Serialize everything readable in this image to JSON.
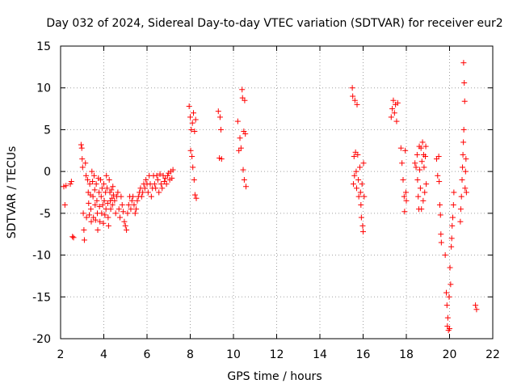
{
  "chart_data": {
    "type": "scatter",
    "title": "Day 032 of 2024, Sidereal Day-to-day VTEC variation (SDTVAR) for receiver eur2",
    "xlabel": "GPS time / hours",
    "ylabel": "SDTVAR / TECUs",
    "xlim": [
      2,
      22
    ],
    "ylim": [
      -20,
      15
    ],
    "xticks": [
      "2",
      "4",
      "6",
      "8",
      "10",
      "12",
      "14",
      "16",
      "18",
      "20",
      "22"
    ],
    "yticks": [
      "15",
      "10",
      "5",
      "0",
      "-5",
      "-10",
      "-15",
      "-20"
    ],
    "grid": true,
    "marker": "+",
    "color": "#ff0000",
    "series": [
      {
        "name": "SDTVAR",
        "points": [
          [
            2.15,
            -1.8
          ],
          [
            2.2,
            -4.0
          ],
          [
            2.25,
            -1.7
          ],
          [
            2.45,
            -1.5
          ],
          [
            2.5,
            -1.2
          ],
          [
            2.55,
            -7.8
          ],
          [
            2.6,
            -7.9
          ],
          [
            2.95,
            3.2
          ],
          [
            2.98,
            2.8
          ],
          [
            3.0,
            1.5
          ],
          [
            3.02,
            0.5
          ],
          [
            3.05,
            -5.0
          ],
          [
            3.08,
            -7.0
          ],
          [
            3.1,
            -8.2
          ],
          [
            3.15,
            1.0
          ],
          [
            3.18,
            -0.5
          ],
          [
            3.2,
            -5.5
          ],
          [
            3.25,
            -1.0
          ],
          [
            3.28,
            -2.5
          ],
          [
            3.3,
            -3.8
          ],
          [
            3.33,
            -5.2
          ],
          [
            3.35,
            -1.5
          ],
          [
            3.38,
            -2.8
          ],
          [
            3.4,
            -4.5
          ],
          [
            3.42,
            -6.0
          ],
          [
            3.45,
            0.0
          ],
          [
            3.48,
            -1.2
          ],
          [
            3.5,
            -3.0
          ],
          [
            3.52,
            -5.5
          ],
          [
            3.55,
            -0.5
          ],
          [
            3.58,
            -2.2
          ],
          [
            3.6,
            -4.0
          ],
          [
            3.62,
            -5.8
          ],
          [
            3.65,
            -1.5
          ],
          [
            3.68,
            -3.5
          ],
          [
            3.7,
            -5.0
          ],
          [
            3.72,
            -7.0
          ],
          [
            3.75,
            -0.8
          ],
          [
            3.78,
            -2.5
          ],
          [
            3.8,
            -4.2
          ],
          [
            3.82,
            -6.0
          ],
          [
            3.85,
            -1.0
          ],
          [
            3.88,
            -3.0
          ],
          [
            3.9,
            -5.0
          ],
          [
            3.92,
            -2.0
          ],
          [
            3.95,
            -4.0
          ],
          [
            3.98,
            -6.2
          ],
          [
            4.0,
            -1.5
          ],
          [
            4.02,
            -3.5
          ],
          [
            4.05,
            -5.2
          ],
          [
            4.08,
            -2.5
          ],
          [
            4.1,
            -4.5
          ],
          [
            4.12,
            -0.5
          ],
          [
            4.15,
            -2.0
          ],
          [
            4.18,
            -3.8
          ],
          [
            4.2,
            -5.5
          ],
          [
            4.22,
            -6.5
          ],
          [
            4.25,
            -1.0
          ],
          [
            4.28,
            -2.5
          ],
          [
            4.3,
            -3.5
          ],
          [
            4.32,
            -4.5
          ],
          [
            4.35,
            -2.2
          ],
          [
            4.38,
            -3.2
          ],
          [
            4.4,
            -4.0
          ],
          [
            4.42,
            -1.8
          ],
          [
            4.45,
            -2.8
          ],
          [
            4.5,
            -3.5
          ],
          [
            4.55,
            -5.0
          ],
          [
            4.6,
            -3.0
          ],
          [
            4.65,
            -2.5
          ],
          [
            4.7,
            -4.5
          ],
          [
            4.75,
            -5.5
          ],
          [
            4.8,
            -3.0
          ],
          [
            4.85,
            -4.0
          ],
          [
            4.9,
            -4.8
          ],
          [
            4.95,
            -6.0
          ],
          [
            5.0,
            -6.5
          ],
          [
            5.05,
            -7.0
          ],
          [
            5.1,
            -5.0
          ],
          [
            5.15,
            -4.0
          ],
          [
            5.2,
            -3.0
          ],
          [
            5.25,
            -4.5
          ],
          [
            5.3,
            -3.5
          ],
          [
            5.35,
            -3.0
          ],
          [
            5.4,
            -4.0
          ],
          [
            5.45,
            -5.0
          ],
          [
            5.5,
            -4.5
          ],
          [
            5.55,
            -3.5
          ],
          [
            5.6,
            -3.0
          ],
          [
            5.65,
            -2.5
          ],
          [
            5.7,
            -2.0
          ],
          [
            5.75,
            -3.0
          ],
          [
            5.8,
            -2.5
          ],
          [
            5.85,
            -1.5
          ],
          [
            5.9,
            -2.0
          ],
          [
            5.95,
            -1.0
          ],
          [
            6.0,
            -1.5
          ],
          [
            6.05,
            -2.5
          ],
          [
            6.1,
            -0.5
          ],
          [
            6.15,
            -1.5
          ],
          [
            6.2,
            -3.0
          ],
          [
            6.25,
            -2.0
          ],
          [
            6.3,
            -0.5
          ],
          [
            6.35,
            -1.5
          ],
          [
            6.4,
            -2.0
          ],
          [
            6.45,
            -0.5
          ],
          [
            6.5,
            -1.0
          ],
          [
            6.55,
            -2.5
          ],
          [
            6.6,
            -0.3
          ],
          [
            6.65,
            -1.5
          ],
          [
            6.7,
            -2.0
          ],
          [
            6.75,
            -0.5
          ],
          [
            6.8,
            -1.2
          ],
          [
            6.85,
            -0.8
          ],
          [
            6.9,
            -1.5
          ],
          [
            6.95,
            -0.5
          ],
          [
            7.0,
            -0.2
          ],
          [
            7.05,
            -1.0
          ],
          [
            7.1,
            0.0
          ],
          [
            7.15,
            -0.8
          ],
          [
            7.2,
            0.2
          ],
          [
            7.95,
            7.8
          ],
          [
            8.0,
            6.5
          ],
          [
            8.02,
            2.5
          ],
          [
            8.05,
            5.0
          ],
          [
            8.08,
            1.8
          ],
          [
            8.1,
            5.8
          ],
          [
            8.12,
            0.5
          ],
          [
            8.15,
            7.0
          ],
          [
            8.18,
            -1.0
          ],
          [
            8.2,
            4.8
          ],
          [
            8.22,
            -2.8
          ],
          [
            8.25,
            6.2
          ],
          [
            8.28,
            -3.2
          ],
          [
            9.3,
            7.2
          ],
          [
            9.35,
            1.6
          ],
          [
            9.38,
            6.5
          ],
          [
            9.42,
            5.0
          ],
          [
            9.45,
            1.5
          ],
          [
            10.2,
            6.0
          ],
          [
            10.25,
            2.5
          ],
          [
            10.3,
            4.0
          ],
          [
            10.35,
            2.8
          ],
          [
            10.4,
            9.8
          ],
          [
            10.42,
            8.8
          ],
          [
            10.45,
            0.2
          ],
          [
            10.48,
            4.8
          ],
          [
            10.5,
            -1.0
          ],
          [
            10.52,
            8.5
          ],
          [
            10.55,
            4.5
          ],
          [
            10.58,
            -1.8
          ],
          [
            15.5,
            10.0
          ],
          [
            15.52,
            9.0
          ],
          [
            15.55,
            -1.5
          ],
          [
            15.58,
            1.8
          ],
          [
            15.6,
            -0.5
          ],
          [
            15.62,
            8.5
          ],
          [
            15.65,
            2.3
          ],
          [
            15.68,
            0.0
          ],
          [
            15.7,
            -2.0
          ],
          [
            15.72,
            8.0
          ],
          [
            15.75,
            2.0
          ],
          [
            15.78,
            -1.0
          ],
          [
            15.8,
            -3.0
          ],
          [
            15.85,
            0.5
          ],
          [
            15.88,
            -2.5
          ],
          [
            15.9,
            -4.0
          ],
          [
            15.92,
            -5.5
          ],
          [
            15.95,
            -1.5
          ],
          [
            15.98,
            -6.5
          ],
          [
            16.0,
            -7.2
          ],
          [
            16.02,
            1.0
          ],
          [
            16.05,
            -3.0
          ],
          [
            17.3,
            6.5
          ],
          [
            17.35,
            7.5
          ],
          [
            17.4,
            8.5
          ],
          [
            17.45,
            7.0
          ],
          [
            17.5,
            8.0
          ],
          [
            17.55,
            6.0
          ],
          [
            17.6,
            8.2
          ],
          [
            17.75,
            2.8
          ],
          [
            17.8,
            1.0
          ],
          [
            17.85,
            -1.0
          ],
          [
            17.9,
            -3.0
          ],
          [
            17.92,
            -4.8
          ],
          [
            17.95,
            2.5
          ],
          [
            17.98,
            -2.5
          ],
          [
            18.0,
            -3.5
          ],
          [
            18.4,
            1.0
          ],
          [
            18.45,
            0.5
          ],
          [
            18.5,
            2.0
          ],
          [
            18.52,
            -1.0
          ],
          [
            18.55,
            -3.0
          ],
          [
            18.58,
            -4.5
          ],
          [
            18.6,
            3.0
          ],
          [
            18.62,
            0.2
          ],
          [
            18.65,
            -2.0
          ],
          [
            18.68,
            2.8
          ],
          [
            18.7,
            -4.5
          ],
          [
            18.72,
            1.2
          ],
          [
            18.75,
            3.5
          ],
          [
            18.78,
            -3.5
          ],
          [
            18.8,
            2.0
          ],
          [
            18.82,
            0.5
          ],
          [
            18.85,
            -2.5
          ],
          [
            18.88,
            1.8
          ],
          [
            18.9,
            3.0
          ],
          [
            18.92,
            -1.5
          ],
          [
            19.4,
            1.5
          ],
          [
            19.45,
            -0.5
          ],
          [
            19.5,
            1.8
          ],
          [
            19.52,
            -1.2
          ],
          [
            19.55,
            -4.0
          ],
          [
            19.58,
            -5.2
          ],
          [
            19.6,
            -7.5
          ],
          [
            19.62,
            -8.5
          ],
          [
            19.8,
            -10.0
          ],
          [
            19.85,
            -14.5
          ],
          [
            19.88,
            -16.0
          ],
          [
            19.9,
            -18.5
          ],
          [
            19.92,
            -17.5
          ],
          [
            19.95,
            -19.0
          ],
          [
            19.98,
            -15.0
          ],
          [
            20.0,
            -18.8
          ],
          [
            20.02,
            -11.5
          ],
          [
            20.05,
            -13.5
          ],
          [
            20.08,
            -9.0
          ],
          [
            20.1,
            -8.0
          ],
          [
            20.12,
            -6.5
          ],
          [
            20.15,
            -5.5
          ],
          [
            20.18,
            -4.0
          ],
          [
            20.2,
            -2.5
          ],
          [
            20.5,
            -6.0
          ],
          [
            20.52,
            -4.5
          ],
          [
            20.55,
            -3.0
          ],
          [
            20.58,
            -1.0
          ],
          [
            20.6,
            0.5
          ],
          [
            20.62,
            2.0
          ],
          [
            20.64,
            3.5
          ],
          [
            20.65,
            13.0
          ],
          [
            20.66,
            5.0
          ],
          [
            20.68,
            10.6
          ],
          [
            20.7,
            8.4
          ],
          [
            20.72,
            -2.0
          ],
          [
            20.74,
            0.0
          ],
          [
            20.76,
            1.5
          ],
          [
            20.78,
            -2.5
          ],
          [
            21.2,
            -16.0
          ],
          [
            21.25,
            -16.5
          ]
        ]
      }
    ]
  }
}
